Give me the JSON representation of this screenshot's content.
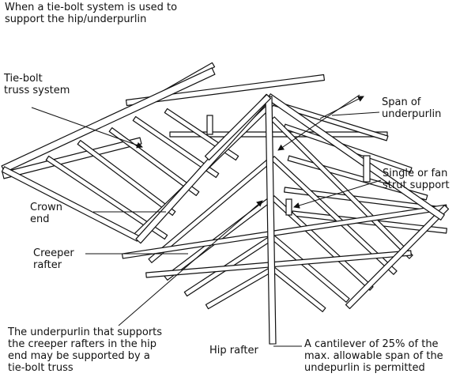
{
  "labels": {
    "title": "When a tie-bolt system is used to\nsupport the hip/underpurlin",
    "tie_bolt": "Tie-bolt\ntruss system",
    "span": "Span of\nunderpurlin",
    "strut": "Single or fan\nstrut support",
    "crown": "Crown\nend",
    "creeper": "Creeper\nrafter",
    "underpurlin_note": "The underpurlin that supports\nthe creeper rafters in the hip\nend may be supported by a\ntie-bolt truss",
    "hip": "Hip rafter",
    "cantilever": "A cantilever of 25% of the\nmax. allowable span of the\nundepurlin is permitted"
  }
}
